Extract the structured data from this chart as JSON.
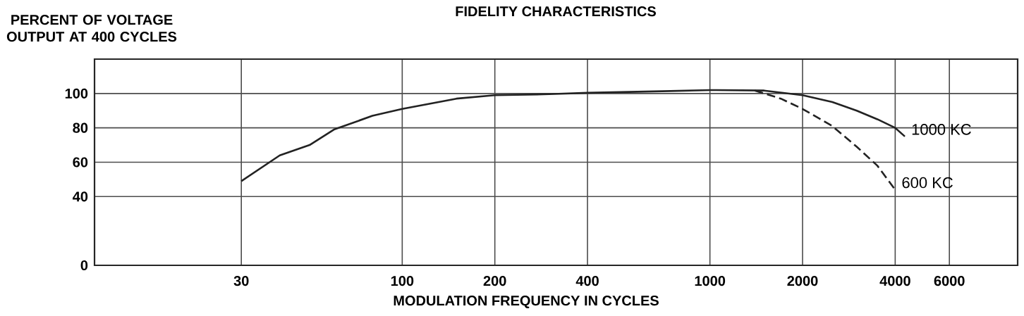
{
  "chart_data": {
    "type": "line",
    "title": "FIDELITY CHARACTERISTICS",
    "xlabel": "MODULATION FREQUENCY IN CYCLES",
    "ylabel": "PERCENT OF VOLTAGE OUTPUT AT 400 CYCLES",
    "log": "x",
    "xlim": [
      10,
      10000
    ],
    "ylim": [
      0,
      120
    ],
    "xticks": [
      30,
      100,
      200,
      400,
      1000,
      2000,
      4000,
      6000
    ],
    "yticks": [
      0,
      40,
      60,
      80,
      100
    ],
    "grid": true,
    "series": [
      {
        "name": "1000 KC",
        "color": "#222222",
        "line_style": "solid",
        "x": [
          30,
          40,
          50,
          60,
          80,
          100,
          150,
          200,
          300,
          400,
          700,
          1000,
          1500,
          2000,
          2500,
          3000,
          3500,
          4000,
          4300
        ],
        "values": [
          49,
          64,
          70,
          79,
          87,
          91,
          97,
          99,
          99.6,
          100.4,
          101.3,
          102,
          101.7,
          99,
          95,
          90,
          85,
          80,
          75
        ]
      },
      {
        "name": "600 KC",
        "color": "#222222",
        "line_style": "dashed",
        "x": [
          1400,
          1700,
          2000,
          2500,
          3000,
          3500,
          4000
        ],
        "values": [
          101.7,
          97,
          91,
          81,
          69,
          58,
          44
        ]
      }
    ]
  }
}
